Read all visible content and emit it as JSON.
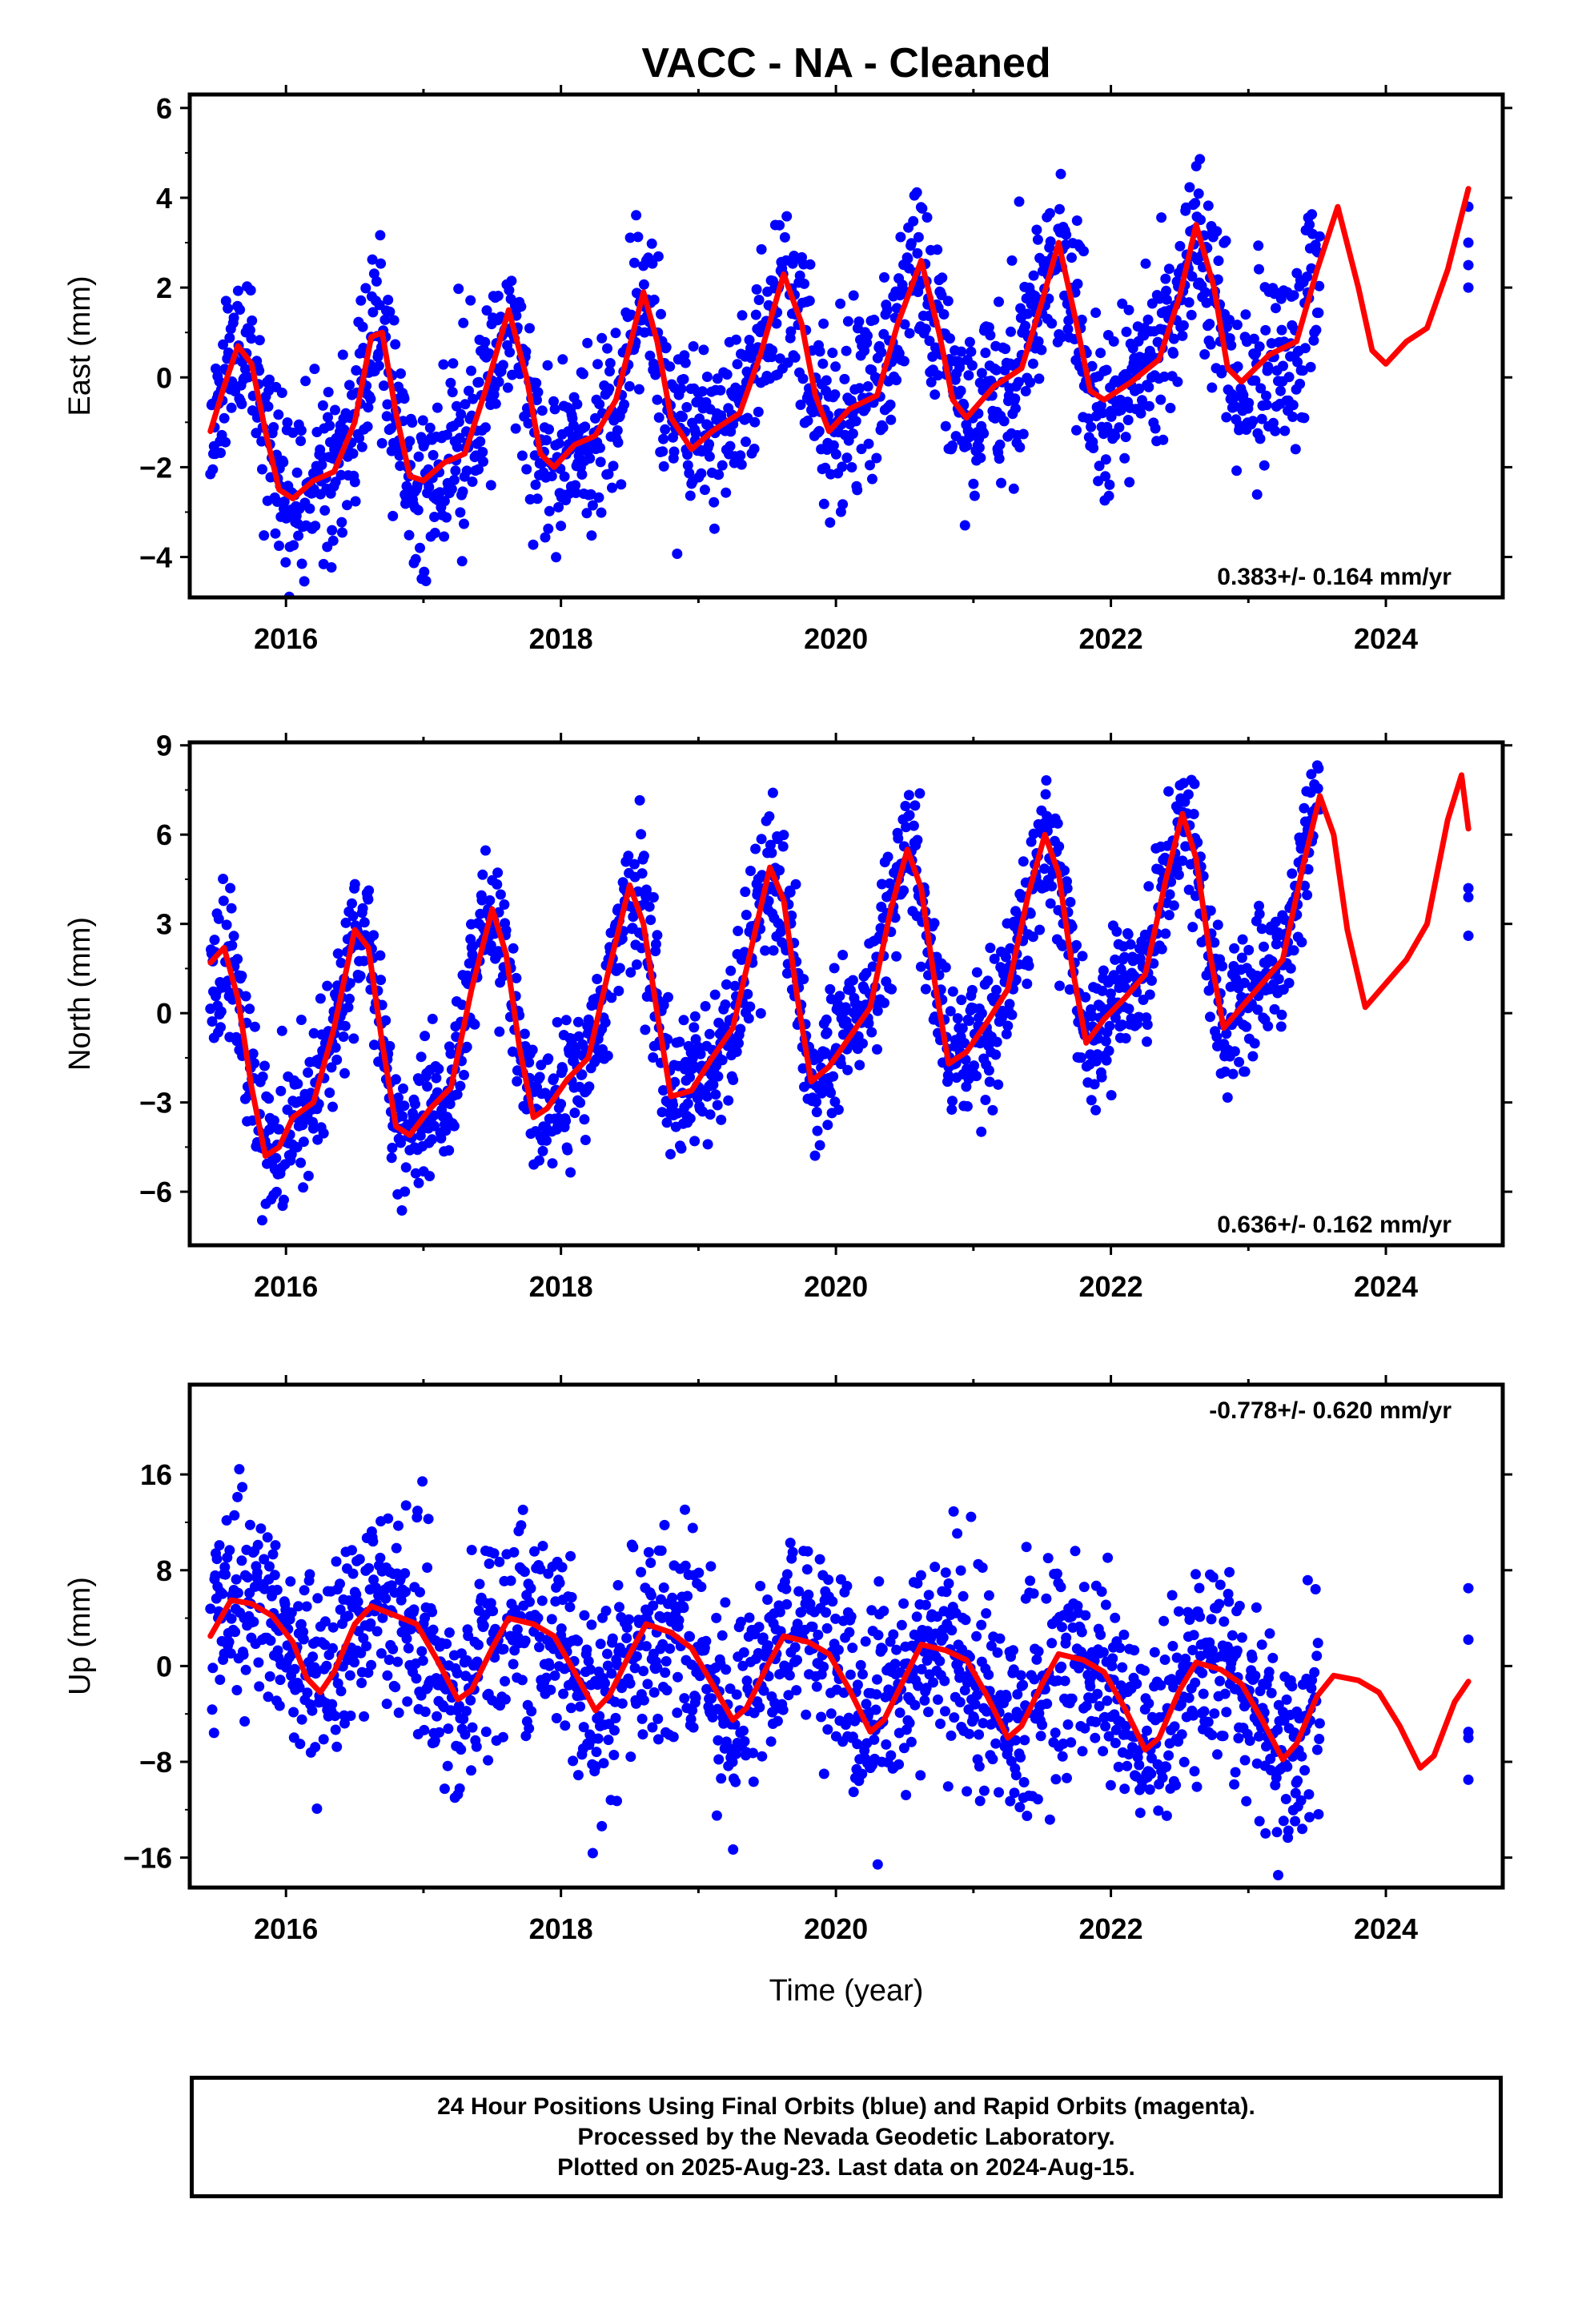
{
  "title": "VACC  - NA - Cleaned",
  "xlabel": "Time (year)",
  "footer": {
    "line1": "24 Hour Positions Using Final Orbits (blue) and Rapid Orbits (magenta).",
    "line2": "Processed by the Nevada Geodetic Laboratory.",
    "line3": "Plotted on 2025-Aug-23. Last data on 2024-Aug-15."
  },
  "colors": {
    "points": "#0000ff",
    "fit": "#ff0000",
    "frame": "#000000"
  },
  "chart_data": [
    {
      "type": "scatter",
      "ylabel": "East (mm)",
      "rate": "0.383+/- 0.164 mm/yr",
      "rate_position": "bottom-right",
      "xlim": [
        2015.3,
        2024.85
      ],
      "ylim": [
        -4.9,
        6.3
      ],
      "yticks": [
        6,
        4,
        2,
        0,
        -2,
        -4
      ],
      "ytick_labels": [
        "6",
        "4",
        "2",
        "0",
        "−2",
        "−4"
      ],
      "xticks": [
        2016,
        2018,
        2020,
        2022,
        2024
      ],
      "xtick_labels": [
        "2016",
        "2018",
        "2020",
        "2022",
        "2024"
      ],
      "fit": {
        "name": "",
        "color": "#ff0000",
        "points": [
          [
            2015.45,
            -1.2
          ],
          [
            2015.55,
            -0.2
          ],
          [
            2015.65,
            0.7
          ],
          [
            2015.75,
            0.3
          ],
          [
            2015.85,
            -1.2
          ],
          [
            2015.95,
            -2.5
          ],
          [
            2016.05,
            -2.7
          ],
          [
            2016.2,
            -2.3
          ],
          [
            2016.35,
            -2.1
          ],
          [
            2016.5,
            -1.0
          ],
          [
            2016.62,
            0.9
          ],
          [
            2016.7,
            1.0
          ],
          [
            2016.8,
            -0.8
          ],
          [
            2016.9,
            -2.2
          ],
          [
            2017.0,
            -2.3
          ],
          [
            2017.15,
            -1.9
          ],
          [
            2017.3,
            -1.7
          ],
          [
            2017.45,
            -0.3
          ],
          [
            2017.62,
            1.5
          ],
          [
            2017.75,
            0.0
          ],
          [
            2017.85,
            -1.7
          ],
          [
            2017.95,
            -2.0
          ],
          [
            2018.1,
            -1.5
          ],
          [
            2018.25,
            -1.3
          ],
          [
            2018.4,
            -0.5
          ],
          [
            2018.6,
            1.9
          ],
          [
            2018.7,
            0.8
          ],
          [
            2018.8,
            -0.9
          ],
          [
            2018.95,
            -1.6
          ],
          [
            2019.1,
            -1.2
          ],
          [
            2019.3,
            -0.8
          ],
          [
            2019.45,
            0.5
          ],
          [
            2019.62,
            2.3
          ],
          [
            2019.75,
            1.2
          ],
          [
            2019.85,
            -0.4
          ],
          [
            2019.95,
            -1.2
          ],
          [
            2020.1,
            -0.7
          ],
          [
            2020.3,
            -0.4
          ],
          [
            2020.45,
            1.2
          ],
          [
            2020.62,
            2.6
          ],
          [
            2020.75,
            1.0
          ],
          [
            2020.85,
            -0.5
          ],
          [
            2020.95,
            -0.9
          ],
          [
            2021.15,
            -0.2
          ],
          [
            2021.35,
            0.2
          ],
          [
            2021.5,
            1.7
          ],
          [
            2021.62,
            3.0
          ],
          [
            2021.75,
            1.2
          ],
          [
            2021.85,
            -0.3
          ],
          [
            2021.95,
            -0.5
          ],
          [
            2022.15,
            -0.1
          ],
          [
            2022.35,
            0.4
          ],
          [
            2022.5,
            1.8
          ],
          [
            2022.62,
            3.4
          ],
          [
            2022.75,
            2.0
          ],
          [
            2022.85,
            0.2
          ],
          [
            2022.95,
            -0.1
          ],
          [
            2023.15,
            0.5
          ],
          [
            2023.35,
            0.8
          ],
          [
            2023.5,
            2.4
          ],
          [
            2023.65,
            3.8
          ],
          [
            2023.8,
            2.0
          ],
          [
            2023.9,
            0.6
          ],
          [
            2024.0,
            0.3
          ],
          [
            2024.15,
            0.8
          ],
          [
            2024.3,
            1.1
          ],
          [
            2024.45,
            2.4
          ],
          [
            2024.6,
            4.2
          ]
        ]
      },
      "seasonal": {
        "amp": 1.7,
        "phase": 0.62,
        "trend_start": -1.0,
        "trend_rate": 0.38,
        "noise": 1.0,
        "start": 2015.45,
        "end": 2023.52,
        "seed": 11
      },
      "extra_points": [
        [
          2024.6,
          2.0
        ],
        [
          2024.6,
          2.5
        ],
        [
          2024.6,
          3.0
        ],
        [
          2024.6,
          3.8
        ]
      ]
    },
    {
      "type": "scatter",
      "ylabel": "North (mm)",
      "rate": "0.636+/- 0.162 mm/yr",
      "rate_position": "bottom-right",
      "xlim": [
        2015.3,
        2024.85
      ],
      "ylim": [
        -7.8,
        9.1
      ],
      "yticks": [
        9,
        6,
        3,
        0,
        -3,
        -6
      ],
      "ytick_labels": [
        "9",
        "6",
        "3",
        "0",
        "−3",
        "−6"
      ],
      "xticks": [
        2016,
        2018,
        2020,
        2022,
        2024
      ],
      "xtick_labels": [
        "2016",
        "2018",
        "2020",
        "2022",
        "2024"
      ],
      "fit": {
        "name": "",
        "color": "#ff0000",
        "points": [
          [
            2015.45,
            1.7
          ],
          [
            2015.55,
            2.2
          ],
          [
            2015.65,
            0.5
          ],
          [
            2015.75,
            -2.5
          ],
          [
            2015.85,
            -4.8
          ],
          [
            2015.95,
            -4.5
          ],
          [
            2016.05,
            -3.5
          ],
          [
            2016.2,
            -3.0
          ],
          [
            2016.35,
            -0.5
          ],
          [
            2016.5,
            2.8
          ],
          [
            2016.6,
            2.2
          ],
          [
            2016.7,
            -1.0
          ],
          [
            2016.8,
            -3.8
          ],
          [
            2016.9,
            -4.1
          ],
          [
            2017.05,
            -3.2
          ],
          [
            2017.2,
            -2.5
          ],
          [
            2017.35,
            0.8
          ],
          [
            2017.5,
            3.5
          ],
          [
            2017.6,
            2.0
          ],
          [
            2017.7,
            -1.2
          ],
          [
            2017.8,
            -3.5
          ],
          [
            2017.9,
            -3.2
          ],
          [
            2018.05,
            -2.2
          ],
          [
            2018.2,
            -1.5
          ],
          [
            2018.35,
            1.5
          ],
          [
            2018.5,
            4.3
          ],
          [
            2018.6,
            3.0
          ],
          [
            2018.7,
            0.0
          ],
          [
            2018.8,
            -2.8
          ],
          [
            2018.95,
            -2.6
          ],
          [
            2019.1,
            -1.5
          ],
          [
            2019.25,
            -0.5
          ],
          [
            2019.4,
            2.5
          ],
          [
            2019.52,
            4.9
          ],
          [
            2019.62,
            3.8
          ],
          [
            2019.72,
            0.5
          ],
          [
            2019.82,
            -2.3
          ],
          [
            2019.95,
            -1.8
          ],
          [
            2020.1,
            -0.8
          ],
          [
            2020.25,
            0.2
          ],
          [
            2020.4,
            3.5
          ],
          [
            2020.52,
            5.5
          ],
          [
            2020.62,
            4.2
          ],
          [
            2020.72,
            1.0
          ],
          [
            2020.82,
            -1.7
          ],
          [
            2020.95,
            -1.3
          ],
          [
            2021.1,
            -0.3
          ],
          [
            2021.25,
            0.8
          ],
          [
            2021.4,
            4.0
          ],
          [
            2021.52,
            6.0
          ],
          [
            2021.62,
            4.7
          ],
          [
            2021.72,
            1.5
          ],
          [
            2021.82,
            -1.0
          ],
          [
            2021.95,
            -0.2
          ],
          [
            2022.1,
            0.5
          ],
          [
            2022.25,
            1.3
          ],
          [
            2022.4,
            4.5
          ],
          [
            2022.52,
            6.7
          ],
          [
            2022.62,
            5.2
          ],
          [
            2022.72,
            2.0
          ],
          [
            2022.82,
            -0.5
          ],
          [
            2022.95,
            0.2
          ],
          [
            2023.1,
            1.0
          ],
          [
            2023.25,
            1.8
          ],
          [
            2023.4,
            5.0
          ],
          [
            2023.52,
            7.3
          ],
          [
            2023.62,
            6.0
          ],
          [
            2023.72,
            2.8
          ],
          [
            2023.85,
            0.2
          ],
          [
            2024.0,
            1.0
          ],
          [
            2024.15,
            1.8
          ],
          [
            2024.3,
            3.0
          ],
          [
            2024.45,
            6.5
          ],
          [
            2024.55,
            8.0
          ],
          [
            2024.6,
            6.2
          ]
        ]
      },
      "seasonal": {
        "amp": 4.0,
        "phase": 0.52,
        "trend_start": -1.5,
        "trend_rate": 0.64,
        "noise": 1.2,
        "start": 2015.45,
        "end": 2023.52,
        "seed": 23
      },
      "extra_points": [
        [
          2024.6,
          2.6
        ],
        [
          2024.6,
          3.9
        ],
        [
          2024.6,
          4.2
        ]
      ]
    },
    {
      "type": "scatter",
      "ylabel": "Up (mm)",
      "rate": "-0.778+/- 0.620 mm/yr",
      "rate_position": "top-right",
      "xlim": [
        2015.3,
        2024.85
      ],
      "ylim": [
        -18.5,
        23.5
      ],
      "yticks": [
        16,
        8,
        0,
        -8,
        -16
      ],
      "ytick_labels": [
        "16",
        "8",
        "0",
        "−8",
        "−16"
      ],
      "xticks": [
        2016,
        2018,
        2020,
        2022,
        2024
      ],
      "xtick_labels": [
        "2016",
        "2018",
        "2020",
        "2022",
        "2024"
      ],
      "fit": {
        "name": "",
        "color": "#ff0000",
        "points": [
          [
            2015.45,
            2.5
          ],
          [
            2015.6,
            5.5
          ],
          [
            2015.75,
            5.2
          ],
          [
            2015.9,
            4.2
          ],
          [
            2016.05,
            2.0
          ],
          [
            2016.15,
            -1.0
          ],
          [
            2016.25,
            -2.2
          ],
          [
            2016.35,
            -0.5
          ],
          [
            2016.5,
            3.5
          ],
          [
            2016.62,
            5.0
          ],
          [
            2016.8,
            4.2
          ],
          [
            2016.95,
            3.5
          ],
          [
            2017.1,
            0.5
          ],
          [
            2017.25,
            -2.8
          ],
          [
            2017.35,
            -2.0
          ],
          [
            2017.5,
            1.5
          ],
          [
            2017.62,
            4.0
          ],
          [
            2017.8,
            3.5
          ],
          [
            2017.95,
            2.5
          ],
          [
            2018.1,
            -0.5
          ],
          [
            2018.25,
            -3.7
          ],
          [
            2018.35,
            -2.5
          ],
          [
            2018.5,
            1.0
          ],
          [
            2018.62,
            3.5
          ],
          [
            2018.8,
            2.8
          ],
          [
            2018.95,
            1.5
          ],
          [
            2019.1,
            -1.5
          ],
          [
            2019.25,
            -4.5
          ],
          [
            2019.35,
            -3.5
          ],
          [
            2019.5,
            0.0
          ],
          [
            2019.62,
            2.5
          ],
          [
            2019.8,
            2.0
          ],
          [
            2019.95,
            1.0
          ],
          [
            2020.1,
            -2.0
          ],
          [
            2020.25,
            -5.5
          ],
          [
            2020.35,
            -4.5
          ],
          [
            2020.5,
            -1.0
          ],
          [
            2020.62,
            1.8
          ],
          [
            2020.8,
            1.3
          ],
          [
            2020.95,
            0.5
          ],
          [
            2021.1,
            -2.5
          ],
          [
            2021.25,
            -6.0
          ],
          [
            2021.35,
            -5.0
          ],
          [
            2021.5,
            -1.5
          ],
          [
            2021.62,
            1.0
          ],
          [
            2021.8,
            0.5
          ],
          [
            2021.95,
            -0.5
          ],
          [
            2022.1,
            -3.5
          ],
          [
            2022.25,
            -7.0
          ],
          [
            2022.35,
            -6.0
          ],
          [
            2022.5,
            -2.0
          ],
          [
            2022.62,
            0.3
          ],
          [
            2022.8,
            -0.3
          ],
          [
            2022.95,
            -1.5
          ],
          [
            2023.1,
            -4.5
          ],
          [
            2023.25,
            -7.8
          ],
          [
            2023.35,
            -6.5
          ],
          [
            2023.5,
            -2.5
          ],
          [
            2023.62,
            -0.8
          ],
          [
            2023.8,
            -1.2
          ],
          [
            2023.95,
            -2.2
          ],
          [
            2024.1,
            -5.0
          ],
          [
            2024.25,
            -8.5
          ],
          [
            2024.35,
            -7.5
          ],
          [
            2024.5,
            -3.0
          ],
          [
            2024.6,
            -1.3
          ]
        ]
      },
      "seasonal": {
        "amp": 4.5,
        "phase": 0.62,
        "trend_start": 3.0,
        "trend_rate": -0.78,
        "noise": 4.2,
        "start": 2015.45,
        "end": 2023.52,
        "seed": 37
      },
      "extra_points": [
        [
          2024.6,
          6.5
        ],
        [
          2024.6,
          2.2
        ],
        [
          2024.6,
          -5.5
        ],
        [
          2024.6,
          -9.5
        ],
        [
          2024.6,
          -6.0
        ]
      ]
    }
  ]
}
